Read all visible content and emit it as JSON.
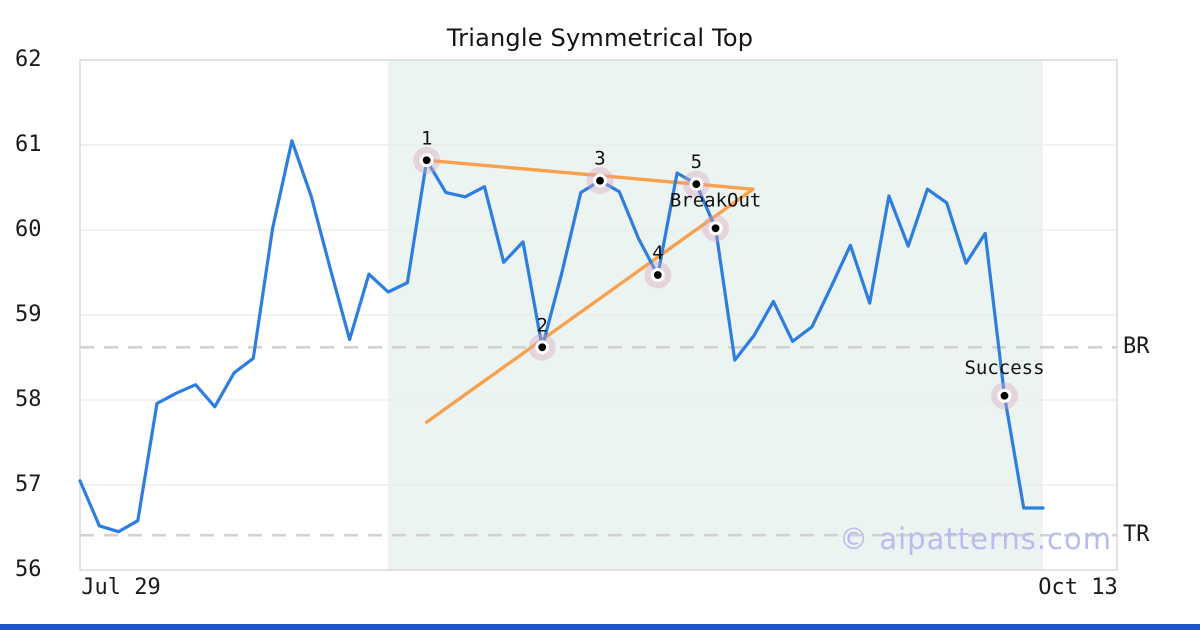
{
  "title": "Triangle Symmetrical Top",
  "watermark": "© aipatterns.com",
  "colors": {
    "price_line": "#2e7de0",
    "trendline": "#f9a04f",
    "pattern_zone_fill": "#ebf4f0",
    "gridline": "#e9e9e9",
    "plot_border": "#dcdcdc",
    "dashed_level": "#d2d2d2",
    "marker_halo": "rgba(219,163,186,0.38)",
    "marker_ring": "#ffffff",
    "marker_dot": "#000000",
    "watermark_color": "#b8bcef",
    "bottom_bar": "#1e56ce"
  },
  "chart_data": {
    "type": "line",
    "title": "Triangle Symmetrical Top",
    "xlabel": "",
    "ylabel": "",
    "ylim": [
      56,
      62
    ],
    "grid": true,
    "legend_position": "none",
    "x_axis": {
      "labels": [
        "Jul 29",
        "Oct 13"
      ]
    },
    "y_axis": {
      "ticks": [
        62,
        61,
        60,
        59,
        58,
        57,
        56
      ]
    },
    "series": [
      {
        "name": "price",
        "values": [
          57.05,
          56.52,
          56.45,
          56.58,
          57.96,
          58.08,
          58.18,
          57.92,
          58.32,
          58.49,
          60.02,
          61.05,
          60.4,
          59.54,
          58.71,
          59.48,
          59.27,
          59.38,
          60.82,
          60.44,
          60.39,
          60.51,
          59.62,
          59.86,
          58.62,
          59.48,
          60.44,
          60.58,
          60.45,
          59.9,
          59.47,
          60.67,
          60.54,
          60.02,
          58.47,
          58.76,
          59.16,
          58.69,
          58.86,
          59.33,
          59.82,
          59.14,
          60.4,
          59.81,
          60.48,
          60.32,
          59.61,
          59.96,
          58.05,
          56.73,
          56.73
        ]
      }
    ],
    "pattern_zone": {
      "start_index": 16,
      "end_index": 50
    },
    "markers": [
      {
        "label": "1",
        "index": 18,
        "value": 60.82
      },
      {
        "label": "2",
        "index": 24,
        "value": 58.62
      },
      {
        "label": "3",
        "index": 27,
        "value": 60.58
      },
      {
        "label": "4",
        "index": 30,
        "value": 59.47
      },
      {
        "label": "5",
        "index": 32,
        "value": 60.54
      },
      {
        "label": "BreakOut",
        "index": 33,
        "value": 60.02
      },
      {
        "label": "Success",
        "index": 48,
        "value": 58.05
      }
    ],
    "trendlines": [
      {
        "name": "resistance",
        "points": [
          [
            18,
            60.82
          ],
          [
            34.94,
            60.48
          ]
        ]
      },
      {
        "name": "support",
        "points": [
          [
            18,
            57.74
          ],
          [
            34.94,
            60.48
          ]
        ]
      }
    ],
    "levels": [
      {
        "label": "BR",
        "value": 58.62
      },
      {
        "label": "TR",
        "value": 56.41
      }
    ]
  }
}
